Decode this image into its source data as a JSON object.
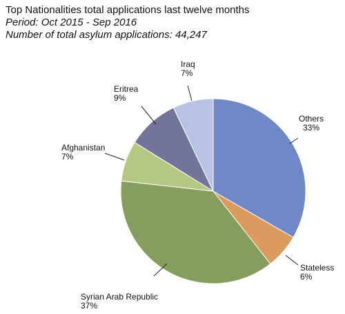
{
  "header": {
    "title": "Top Nationalities total applications last twelve months",
    "period": "Period: Oct 2015 - Sep 2016",
    "total": "Number of total asylum applications: 44,247"
  },
  "chart_data": {
    "type": "pie",
    "title": "Top Nationalities total applications last twelve months",
    "start_angle_deg": 0,
    "direction": "clockwise",
    "legend": "none",
    "slices": [
      {
        "label": "Others",
        "percent_label": "33%",
        "value": 33,
        "color": "#7089c6"
      },
      {
        "label": "Stateless",
        "percent_label": "6%",
        "value": 6,
        "color": "#db9a5e"
      },
      {
        "label": "Syrian Arab Republic",
        "percent_label": "37%",
        "value": 37,
        "color": "#869e5d"
      },
      {
        "label": "Afghanistan",
        "percent_label": "7%",
        "value": 7,
        "color": "#b4c783"
      },
      {
        "label": "Eritrea",
        "percent_label": "9%",
        "value": 9,
        "color": "#727599"
      },
      {
        "label": "Iraq",
        "percent_label": "7%",
        "value": 7,
        "color": "#b7c2e4"
      }
    ]
  }
}
